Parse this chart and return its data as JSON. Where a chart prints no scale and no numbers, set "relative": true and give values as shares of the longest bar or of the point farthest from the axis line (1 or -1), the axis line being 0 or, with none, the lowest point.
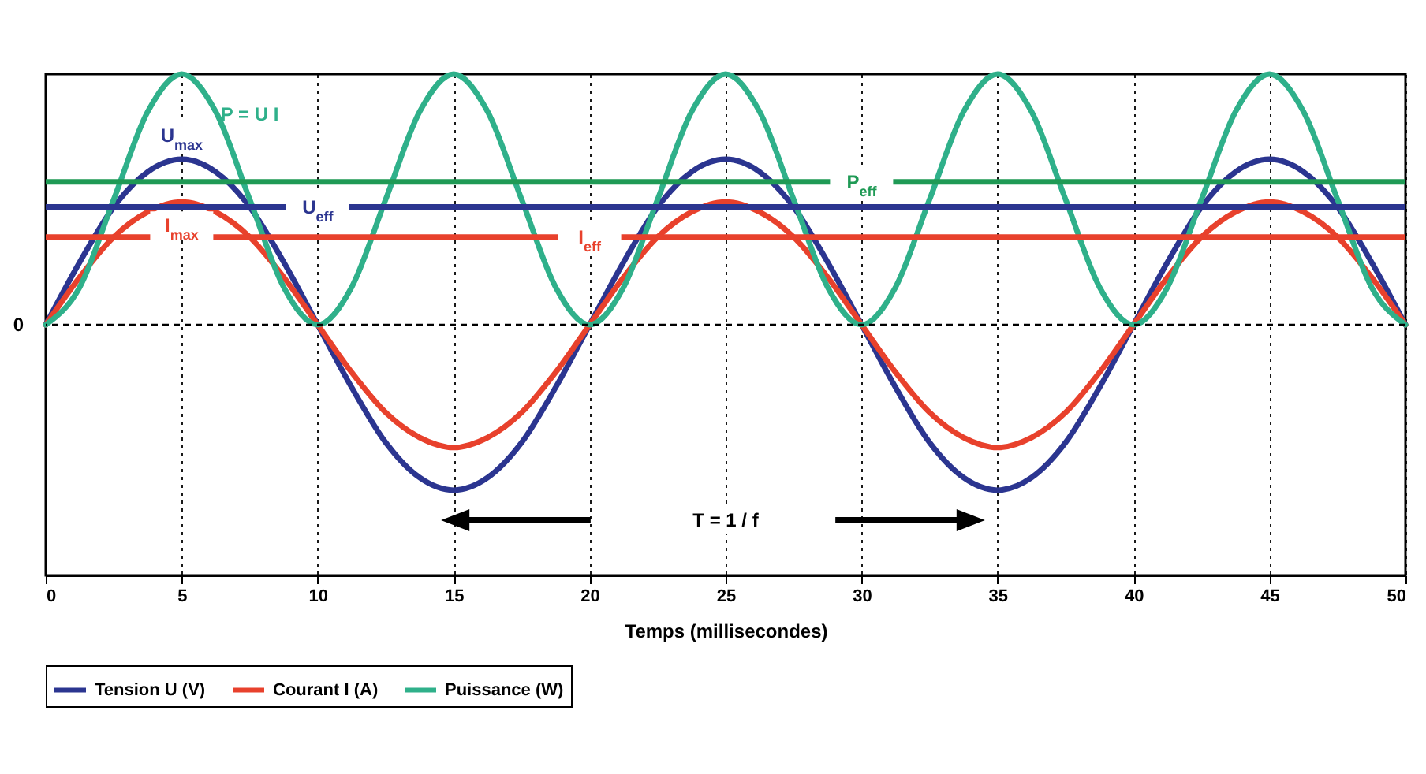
{
  "chart_data": {
    "type": "line",
    "relative": true,
    "xlabel": "Temps (millisecondes)",
    "xlim": [
      0,
      50
    ],
    "xticks": [
      0,
      5,
      10,
      15,
      20,
      25,
      30,
      35,
      40,
      45,
      50
    ],
    "grid": "x",
    "legend": "bottom",
    "line_style": "solid",
    "marker": "none",
    "x": [
      0,
      1.25,
      2.5,
      3.75,
      5,
      6.25,
      7.5,
      8.75,
      10,
      11.25,
      12.5,
      13.75,
      15,
      16.25,
      17.5,
      18.75,
      20,
      21.25,
      22.5,
      23.75,
      25,
      26.25,
      27.5,
      28.75,
      30,
      31.25,
      32.5,
      33.75,
      35,
      36.25,
      37.5,
      38.75,
      40,
      41.25,
      42.5,
      43.75,
      45,
      46.25,
      47.5,
      48.75,
      50
    ],
    "series": [
      {
        "name": "Tension U (V)",
        "color": "#2b3590",
        "values": [
          0,
          0.25,
          0.47,
          0.61,
          0.66,
          0.61,
          0.47,
          0.25,
          0,
          -0.25,
          -0.47,
          -0.61,
          -0.66,
          -0.61,
          -0.47,
          -0.25,
          0,
          0.25,
          0.47,
          0.61,
          0.66,
          0.61,
          0.47,
          0.25,
          0,
          -0.25,
          -0.47,
          -0.61,
          -0.66,
          -0.61,
          -0.47,
          -0.25,
          0,
          0.25,
          0.47,
          0.61,
          0.66,
          0.61,
          0.47,
          0.25,
          0
        ]
      },
      {
        "name": "Courant I (A)",
        "color": "#e8412c",
        "values": [
          0,
          0.19,
          0.35,
          0.45,
          0.49,
          0.45,
          0.35,
          0.19,
          0,
          -0.19,
          -0.35,
          -0.45,
          -0.49,
          -0.45,
          -0.35,
          -0.19,
          0,
          0.19,
          0.35,
          0.45,
          0.49,
          0.45,
          0.35,
          0.19,
          0,
          -0.19,
          -0.35,
          -0.45,
          -0.49,
          -0.45,
          -0.35,
          -0.19,
          0,
          0.19,
          0.35,
          0.45,
          0.49,
          0.45,
          0.35,
          0.19,
          0
        ]
      },
      {
        "name": "Puissance (W)",
        "color": "#2fb08a",
        "values": [
          0,
          0.15,
          0.5,
          0.85,
          1,
          0.85,
          0.5,
          0.15,
          0,
          0.15,
          0.5,
          0.85,
          1,
          0.85,
          0.5,
          0.15,
          0,
          0.15,
          0.5,
          0.85,
          1,
          0.85,
          0.5,
          0.15,
          0,
          0.15,
          0.5,
          0.85,
          1,
          0.85,
          0.5,
          0.15,
          0,
          0.15,
          0.5,
          0.85,
          1,
          0.85,
          0.5,
          0.15,
          0
        ]
      }
    ],
    "ref_lines": [
      {
        "axis": "y",
        "value": 0,
        "label": "0",
        "color": "#000000",
        "line_style": "dashed"
      },
      {
        "axis": "y",
        "value": 0.57,
        "label": "P$_{eff}$",
        "color": "#1f9a55",
        "line_style": "solid"
      },
      {
        "axis": "y",
        "value": 0.47,
        "label": "U$_{eff}$",
        "color": "#2b3590",
        "line_style": "solid"
      },
      {
        "axis": "y",
        "value": 0.35,
        "label": "I$_{eff}$",
        "color": "#e8412c",
        "line_style": "solid"
      }
    ],
    "annotations": [
      "P = U I",
      {
        "text": "U$_{max}$",
        "x": 5,
        "y": 0.66
      },
      {
        "text": "I$_{max}$",
        "x": 5,
        "y": 0.49
      },
      "T = 1 / f"
    ]
  }
}
